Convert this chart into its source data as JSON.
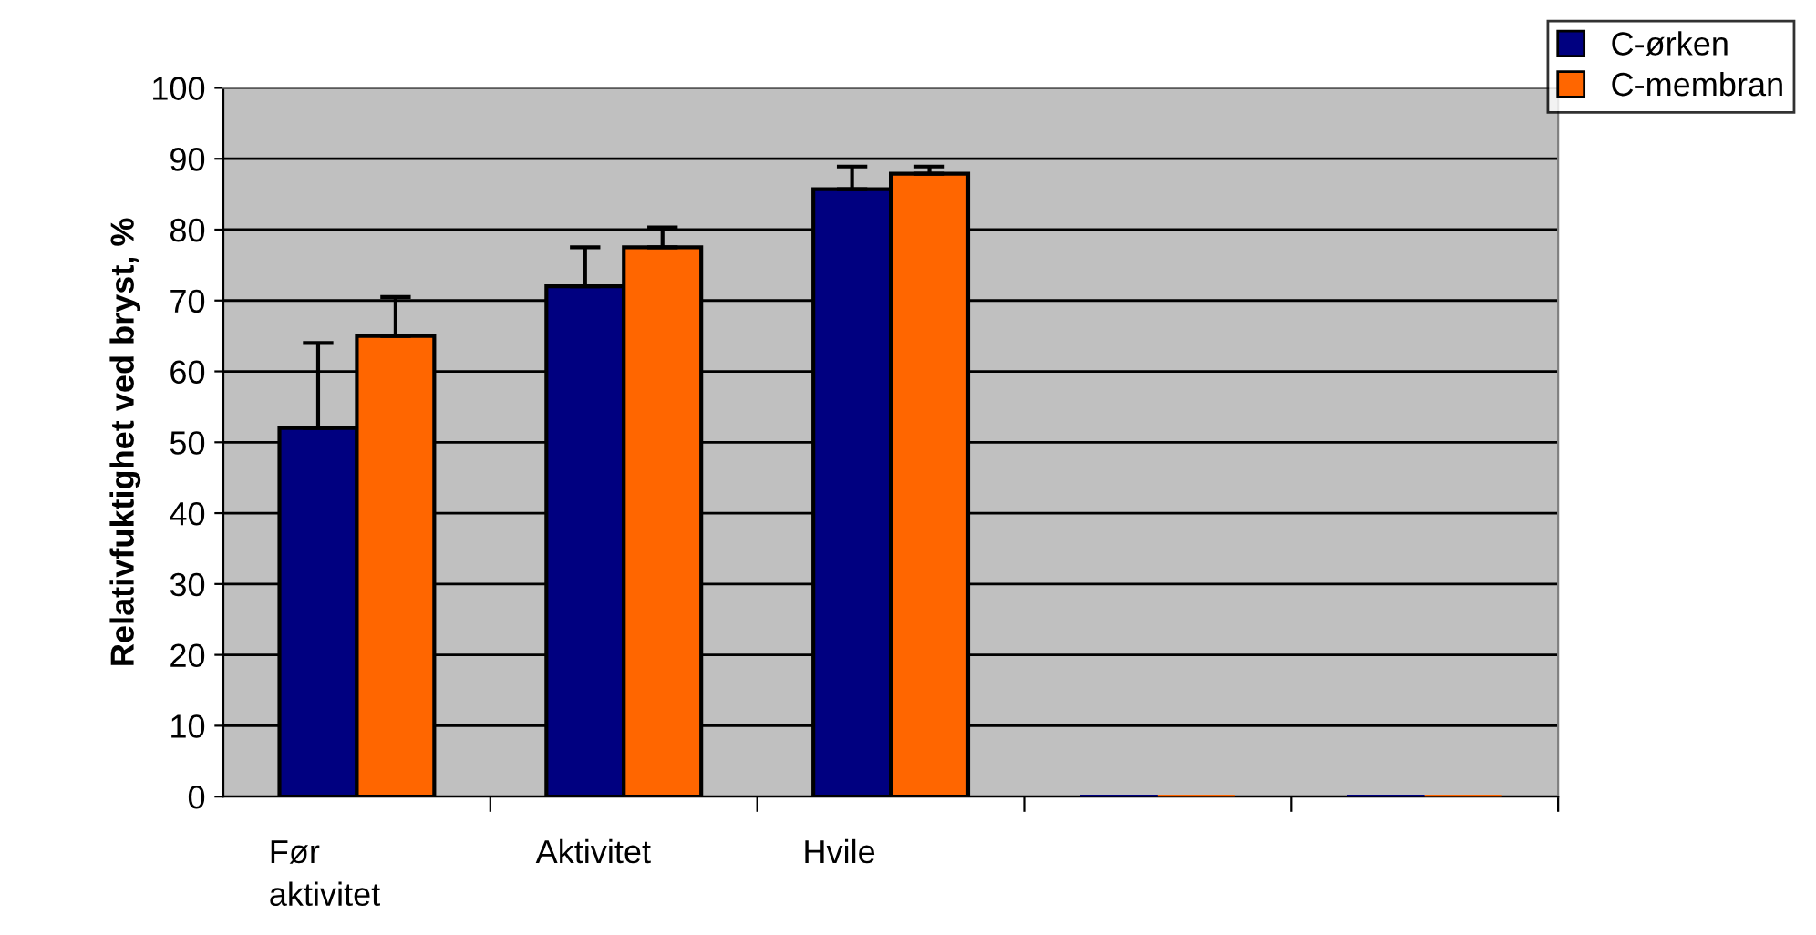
{
  "chart_data": {
    "type": "bar",
    "ylabel": "Relativfuktighet ved bryst, %",
    "categories": [
      "Før\naktivitet",
      "Aktivitet",
      "Hvile",
      null,
      null
    ],
    "series": [
      {
        "name": "C-ørken",
        "color": "#000080",
        "values": [
          52,
          72,
          85.7,
          0,
          0
        ],
        "errors": [
          [
            52,
            64
          ],
          [
            72,
            77.5
          ],
          [
            85.7,
            88.9
          ],
          null,
          null
        ]
      },
      {
        "name": "C-membran",
        "color": "#ff6600",
        "values": [
          65,
          77.5,
          87.9,
          0,
          0
        ],
        "errors": [
          [
            65,
            70.5
          ],
          [
            77.5,
            80.3
          ],
          [
            87.9,
            88.9
          ],
          null,
          null
        ]
      }
    ],
    "ylim": [
      0,
      100
    ],
    "yticks": [
      0,
      10,
      20,
      30,
      40,
      50,
      60,
      70,
      80,
      90,
      100
    ],
    "grid": "y",
    "legend": "top right"
  }
}
